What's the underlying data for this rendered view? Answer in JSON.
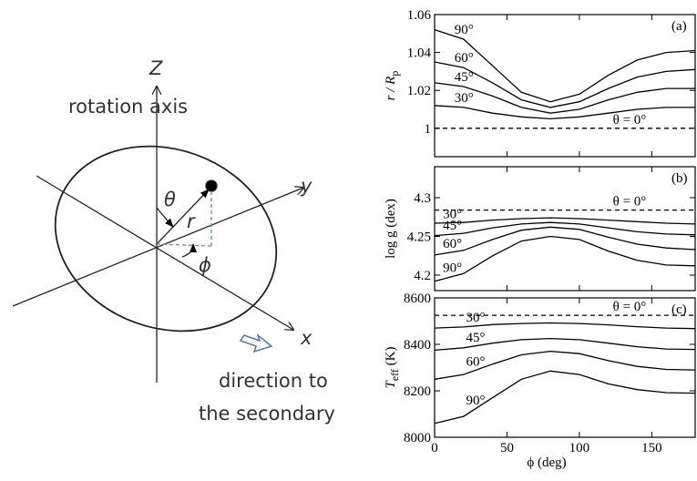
{
  "diagram": {
    "z_label": "Z",
    "axis_label": "rotation axis",
    "y_label": "y",
    "theta_label": "θ",
    "r_label": "r",
    "phi_label": "ϕ",
    "x_label": "x",
    "direction_lines": [
      "direction to",
      "the secondary"
    ]
  },
  "chart_data": [
    {
      "type": "line",
      "panel": "(a)",
      "ylabel": {
        "main": "r / R",
        "sub": "p"
      },
      "xlim": [
        0,
        180
      ],
      "xticks": [
        0,
        50,
        100,
        150
      ],
      "ylim": [
        0.985,
        1.06
      ],
      "yticks": [
        1,
        1.02,
        1.04,
        1.06
      ],
      "x": [
        0,
        20,
        40,
        60,
        80,
        100,
        120,
        140,
        160,
        180
      ],
      "series": [
        {
          "name": "θ = 0°",
          "color": "#000",
          "dashed": true,
          "values": [
            1,
            1,
            1,
            1,
            1,
            1,
            1,
            1,
            1,
            1
          ]
        },
        {
          "name": "30°",
          "color": "#000",
          "values": [
            1.012,
            1.011,
            1.008,
            1.006,
            1.005,
            1.006,
            1.008,
            1.01,
            1.011,
            1.011
          ]
        },
        {
          "name": "45°",
          "color": "#000",
          "values": [
            1.024,
            1.022,
            1.017,
            1.011,
            1.008,
            1.01,
            1.015,
            1.019,
            1.021,
            1.021
          ]
        },
        {
          "name": "60°",
          "color": "#000",
          "values": [
            1.035,
            1.032,
            1.024,
            1.015,
            1.011,
            1.014,
            1.021,
            1.027,
            1.03,
            1.031
          ]
        },
        {
          "name": "90°",
          "color": "#000",
          "values": [
            1.052,
            1.047,
            1.033,
            1.019,
            1.014,
            1.018,
            1.028,
            1.036,
            1.04,
            1.041
          ]
        }
      ]
    },
    {
      "type": "line",
      "panel": "(b)",
      "ylabel": {
        "main": "log g (dex)"
      },
      "xlim": [
        0,
        180
      ],
      "xticks": [
        0,
        50,
        100,
        150
      ],
      "ylim": [
        4.18,
        4.34
      ],
      "yticks": [
        4.2,
        4.25,
        4.3
      ],
      "x": [
        0,
        20,
        40,
        60,
        80,
        100,
        120,
        140,
        160,
        180
      ],
      "series": [
        {
          "name": "θ = 0°",
          "color": "#000",
          "dashed": true,
          "values": [
            4.284,
            4.284,
            4.284,
            4.284,
            4.284,
            4.284,
            4.284,
            4.284,
            4.284,
            4.284
          ]
        },
        {
          "name": "30°",
          "color": "#000",
          "values": [
            4.267,
            4.268,
            4.271,
            4.273,
            4.274,
            4.273,
            4.271,
            4.269,
            4.267,
            4.266
          ]
        },
        {
          "name": "45°",
          "color": "#000",
          "values": [
            4.251,
            4.254,
            4.261,
            4.266,
            4.268,
            4.266,
            4.261,
            4.256,
            4.253,
            4.252
          ]
        },
        {
          "name": "60°",
          "color": "#000",
          "values": [
            4.226,
            4.232,
            4.246,
            4.258,
            4.262,
            4.259,
            4.249,
            4.24,
            4.235,
            4.233
          ]
        },
        {
          "name": "90°",
          "color": "#000",
          "values": [
            4.192,
            4.202,
            4.225,
            4.244,
            4.25,
            4.246,
            4.231,
            4.219,
            4.213,
            4.212
          ]
        }
      ]
    },
    {
      "type": "line",
      "panel": "(c)",
      "ylabel": {
        "main": "T",
        "sub": "eff",
        "after": " (K)"
      },
      "xlabel": "ϕ (deg)",
      "xlim": [
        0,
        180
      ],
      "xticks": [
        0,
        50,
        100,
        150
      ],
      "ylim": [
        8000,
        8600
      ],
      "yticks": [
        8000,
        8200,
        8400,
        8600
      ],
      "x": [
        0,
        20,
        40,
        60,
        80,
        100,
        120,
        140,
        160,
        180
      ],
      "series": [
        {
          "name": "θ = 0°",
          "color": "#000",
          "dashed": true,
          "values": [
            8525,
            8525,
            8525,
            8525,
            8525,
            8525,
            8525,
            8525,
            8525,
            8525
          ]
        },
        {
          "name": "30°",
          "color": "#000",
          "values": [
            8470,
            8475,
            8485,
            8490,
            8492,
            8490,
            8484,
            8476,
            8470,
            8468
          ]
        },
        {
          "name": "45°",
          "color": "#000",
          "values": [
            8375,
            8385,
            8405,
            8420,
            8425,
            8420,
            8405,
            8390,
            8380,
            8378
          ]
        },
        {
          "name": "60°",
          "color": "#000",
          "values": [
            8250,
            8270,
            8315,
            8355,
            8370,
            8360,
            8330,
            8305,
            8292,
            8290
          ]
        },
        {
          "name": "90°",
          "color": "#000",
          "values": [
            8060,
            8090,
            8170,
            8250,
            8285,
            8270,
            8230,
            8205,
            8192,
            8190
          ]
        }
      ]
    }
  ]
}
